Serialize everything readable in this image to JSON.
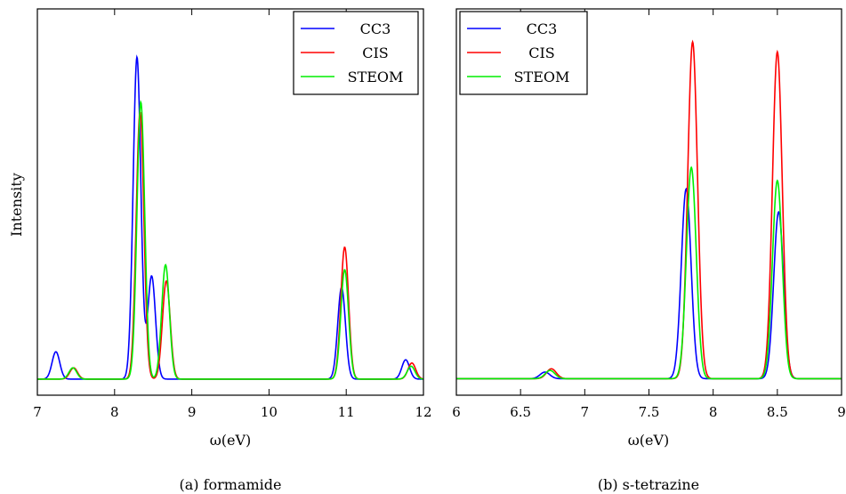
{
  "chart_data": [
    {
      "type": "line",
      "caption": "(a) formamide",
      "xlabel": "ω(eV)",
      "ylabel": "Intensity",
      "xlim": [
        7,
        12
      ],
      "ylim": [
        -0.05,
        1.15
      ],
      "xticks": [
        "7",
        "8",
        "9",
        "10",
        "11",
        "12"
      ],
      "yticks_shown": false,
      "legend_position": "top-right",
      "series": [
        {
          "name": "CC3",
          "color": "#0000ff",
          "peaks": [
            {
              "x": 7.24,
              "height": 0.085
            },
            {
              "x": 8.29,
              "height": 1.0
            },
            {
              "x": 8.48,
              "height": 0.32
            },
            {
              "x": 10.94,
              "height": 0.285
            },
            {
              "x": 11.77,
              "height": 0.06
            }
          ]
        },
        {
          "name": "CIS",
          "color": "#ff0000",
          "peaks": [
            {
              "x": 7.47,
              "height": 0.035
            },
            {
              "x": 8.33,
              "height": 0.83
            },
            {
              "x": 8.67,
              "height": 0.305
            },
            {
              "x": 10.98,
              "height": 0.41
            },
            {
              "x": 11.85,
              "height": 0.05
            }
          ]
        },
        {
          "name": "STEOM",
          "color": "#00ee00",
          "peaks": [
            {
              "x": 7.46,
              "height": 0.035
            },
            {
              "x": 8.34,
              "height": 0.86
            },
            {
              "x": 8.66,
              "height": 0.355
            },
            {
              "x": 10.98,
              "height": 0.34
            },
            {
              "x": 11.84,
              "height": 0.04
            }
          ]
        }
      ]
    },
    {
      "type": "line",
      "caption": "(b) s-tetrazine",
      "xlabel": "ω(eV)",
      "ylabel": "",
      "xlim": [
        6,
        9
      ],
      "ylim": [
        -0.05,
        1.12
      ],
      "xticks": [
        "6",
        "6.5",
        "7",
        "7.5",
        "8",
        "8.5",
        "9"
      ],
      "yticks_shown": false,
      "legend_position": "top-left",
      "series": [
        {
          "name": "CC3",
          "color": "#0000ff",
          "peaks": [
            {
              "x": 6.69,
              "height": 0.02
            },
            {
              "x": 7.79,
              "height": 0.575
            },
            {
              "x": 8.51,
              "height": 0.505
            }
          ]
        },
        {
          "name": "CIS",
          "color": "#ff0000",
          "peaks": [
            {
              "x": 6.74,
              "height": 0.03
            },
            {
              "x": 7.84,
              "height": 1.02
            },
            {
              "x": 8.5,
              "height": 0.99
            }
          ]
        },
        {
          "name": "STEOM",
          "color": "#00ee00",
          "peaks": [
            {
              "x": 6.73,
              "height": 0.025
            },
            {
              "x": 7.83,
              "height": 0.64
            },
            {
              "x": 8.5,
              "height": 0.6
            }
          ]
        }
      ]
    }
  ]
}
